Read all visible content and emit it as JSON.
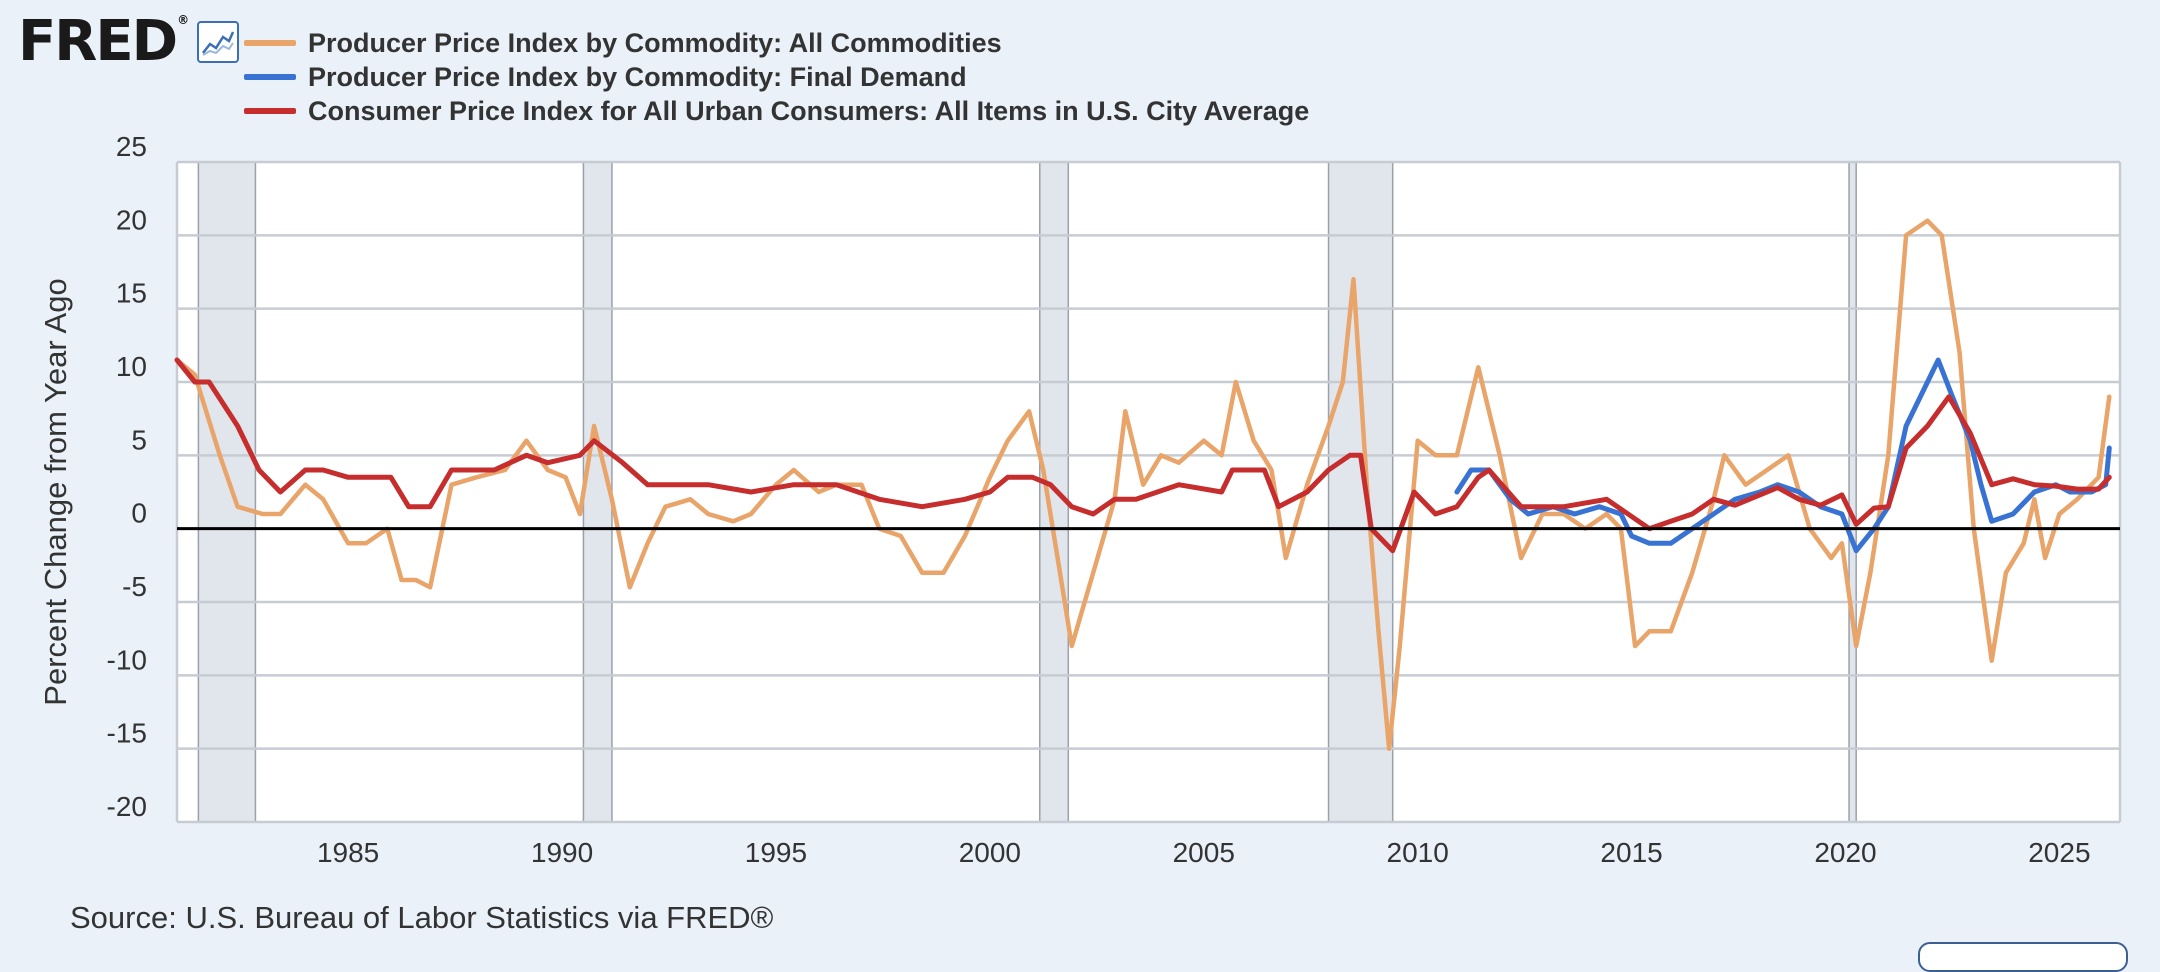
{
  "logo": {
    "text": "FRED",
    "registered": "®",
    "icon": "line-chart-icon"
  },
  "source": "Source: U.S. Bureau of Labor Statistics via FRED®",
  "chart_data": {
    "type": "line",
    "title": "",
    "xlabel": "",
    "ylabel": "Percent Change from Year Ago",
    "xlim": [
      "1981-01",
      "2026-06"
    ],
    "ylim": [
      -20,
      25
    ],
    "yticks": [
      25,
      20,
      15,
      10,
      5,
      0,
      -5,
      -10,
      -15,
      -20
    ],
    "xticks": [
      1985,
      1990,
      1995,
      2000,
      2005,
      2010,
      2015,
      2020,
      2025
    ],
    "grid": true,
    "legend_position": "top-left",
    "recessions": [
      [
        "1981-07",
        "1982-11"
      ],
      [
        "1990-07",
        "1991-03"
      ],
      [
        "2001-03",
        "2001-11"
      ],
      [
        "2007-12",
        "2009-06"
      ],
      [
        "2020-02",
        "2020-04"
      ]
    ],
    "series": [
      {
        "name": "Producer Price Index by Commodity: All Commodities",
        "color": "#e9a46a",
        "points": [
          [
            "1981-01",
            11.5
          ],
          [
            "1981-06",
            10.5
          ],
          [
            "1982-01",
            5
          ],
          [
            "1982-06",
            1.5
          ],
          [
            "1983-01",
            1
          ],
          [
            "1983-06",
            1
          ],
          [
            "1984-01",
            3
          ],
          [
            "1984-06",
            2
          ],
          [
            "1985-01",
            -1
          ],
          [
            "1985-06",
            -1
          ],
          [
            "1985-12",
            0
          ],
          [
            "1986-04",
            -3.5
          ],
          [
            "1986-08",
            -3.5
          ],
          [
            "1986-12",
            -4
          ],
          [
            "1987-06",
            3
          ],
          [
            "1988-01",
            3.5
          ],
          [
            "1988-09",
            4
          ],
          [
            "1989-03",
            6
          ],
          [
            "1989-09",
            4
          ],
          [
            "1990-02",
            3.5
          ],
          [
            "1990-06",
            1
          ],
          [
            "1990-10",
            7
          ],
          [
            "1991-03",
            2
          ],
          [
            "1991-08",
            -4
          ],
          [
            "1992-01",
            -1
          ],
          [
            "1992-06",
            1.5
          ],
          [
            "1993-01",
            2
          ],
          [
            "1993-06",
            1
          ],
          [
            "1994-01",
            0.5
          ],
          [
            "1994-06",
            1
          ],
          [
            "1995-01",
            3
          ],
          [
            "1995-06",
            4
          ],
          [
            "1996-01",
            2.5
          ],
          [
            "1996-06",
            3
          ],
          [
            "1997-01",
            3
          ],
          [
            "1997-06",
            0
          ],
          [
            "1997-12",
            -0.5
          ],
          [
            "1998-06",
            -3
          ],
          [
            "1998-12",
            -3
          ],
          [
            "1999-06",
            -0.5
          ],
          [
            "2000-01",
            3.5
          ],
          [
            "2000-06",
            6
          ],
          [
            "2000-12",
            8
          ],
          [
            "2001-04",
            4
          ],
          [
            "2001-08",
            -2
          ],
          [
            "2001-12",
            -8
          ],
          [
            "2002-06",
            -3
          ],
          [
            "2002-12",
            2
          ],
          [
            "2003-03",
            8
          ],
          [
            "2003-08",
            3
          ],
          [
            "2004-01",
            5
          ],
          [
            "2004-06",
            4.5
          ],
          [
            "2005-01",
            6
          ],
          [
            "2005-06",
            5
          ],
          [
            "2005-10",
            10
          ],
          [
            "2006-03",
            6
          ],
          [
            "2006-08",
            4
          ],
          [
            "2006-12",
            -2
          ],
          [
            "2007-06",
            3
          ],
          [
            "2007-12",
            7
          ],
          [
            "2008-04",
            10
          ],
          [
            "2008-07",
            17
          ],
          [
            "2008-11",
            2
          ],
          [
            "2009-02",
            -7
          ],
          [
            "2009-05",
            -15
          ],
          [
            "2009-08",
            -8
          ],
          [
            "2010-01",
            6
          ],
          [
            "2010-06",
            5
          ],
          [
            "2010-12",
            5
          ],
          [
            "2011-06",
            11
          ],
          [
            "2011-12",
            5
          ],
          [
            "2012-06",
            -2
          ],
          [
            "2012-12",
            1
          ],
          [
            "2013-06",
            1
          ],
          [
            "2013-12",
            0
          ],
          [
            "2014-06",
            1
          ],
          [
            "2014-10",
            0
          ],
          [
            "2015-02",
            -8
          ],
          [
            "2015-06",
            -7
          ],
          [
            "2015-12",
            -7
          ],
          [
            "2016-06",
            -3
          ],
          [
            "2016-12",
            2
          ],
          [
            "2017-03",
            5
          ],
          [
            "2017-09",
            3
          ],
          [
            "2018-03",
            4
          ],
          [
            "2018-09",
            5
          ],
          [
            "2019-03",
            0
          ],
          [
            "2019-09",
            -2
          ],
          [
            "2019-12",
            -1
          ],
          [
            "2020-04",
            -8
          ],
          [
            "2020-08",
            -3
          ],
          [
            "2021-01",
            5
          ],
          [
            "2021-06",
            20
          ],
          [
            "2021-12",
            21
          ],
          [
            "2022-04",
            20
          ],
          [
            "2022-09",
            12
          ],
          [
            "2023-01",
            0
          ],
          [
            "2023-06",
            -9
          ],
          [
            "2023-10",
            -3
          ],
          [
            "2024-03",
            -1
          ],
          [
            "2024-06",
            2
          ],
          [
            "2024-09",
            -2
          ],
          [
            "2025-01",
            1
          ],
          [
            "2025-06",
            2
          ],
          [
            "2025-12",
            3.5
          ],
          [
            "2026-03",
            9
          ]
        ]
      },
      {
        "name": "Producer Price Index by Commodity: Final Demand",
        "color": "#3873d4",
        "points": [
          [
            "2010-12",
            2.5
          ],
          [
            "2011-04",
            4
          ],
          [
            "2011-09",
            4
          ],
          [
            "2012-03",
            2
          ],
          [
            "2012-08",
            1
          ],
          [
            "2013-03",
            1.5
          ],
          [
            "2013-09",
            1
          ],
          [
            "2014-04",
            1.5
          ],
          [
            "2014-10",
            1
          ],
          [
            "2015-01",
            -0.5
          ],
          [
            "2015-06",
            -1
          ],
          [
            "2015-12",
            -1
          ],
          [
            "2016-06",
            0
          ],
          [
            "2016-12",
            1
          ],
          [
            "2017-06",
            2
          ],
          [
            "2018-01",
            2.5
          ],
          [
            "2018-06",
            3
          ],
          [
            "2018-12",
            2.5
          ],
          [
            "2019-06",
            1.5
          ],
          [
            "2019-12",
            1
          ],
          [
            "2020-04",
            -1.5
          ],
          [
            "2020-09",
            0
          ],
          [
            "2021-01",
            1.5
          ],
          [
            "2021-06",
            7
          ],
          [
            "2021-12",
            10
          ],
          [
            "2022-03",
            11.5
          ],
          [
            "2022-07",
            9
          ],
          [
            "2022-12",
            6
          ],
          [
            "2023-03",
            3
          ],
          [
            "2023-06",
            0.5
          ],
          [
            "2023-12",
            1
          ],
          [
            "2024-06",
            2.5
          ],
          [
            "2024-12",
            3
          ],
          [
            "2025-04",
            2.5
          ],
          [
            "2025-10",
            2.5
          ],
          [
            "2026-02",
            3
          ],
          [
            "2026-03",
            5.5
          ]
        ]
      },
      {
        "name": "Consumer Price Index for All Urban Consumers: All Items in U.S. City Average",
        "color": "#c62d2d",
        "points": [
          [
            "1981-01",
            11.5
          ],
          [
            "1981-06",
            10
          ],
          [
            "1981-10",
            10
          ],
          [
            "1982-06",
            7
          ],
          [
            "1982-12",
            4
          ],
          [
            "1983-06",
            2.5
          ],
          [
            "1984-01",
            4
          ],
          [
            "1984-06",
            4
          ],
          [
            "1985-01",
            3.5
          ],
          [
            "1985-06",
            3.5
          ],
          [
            "1986-01",
            3.5
          ],
          [
            "1986-06",
            1.5
          ],
          [
            "1986-12",
            1.5
          ],
          [
            "1987-06",
            4
          ],
          [
            "1988-01",
            4
          ],
          [
            "1988-06",
            4
          ],
          [
            "1989-03",
            5
          ],
          [
            "1989-09",
            4.5
          ],
          [
            "1990-06",
            5
          ],
          [
            "1990-10",
            6
          ],
          [
            "1991-06",
            4.5
          ],
          [
            "1992-01",
            3
          ],
          [
            "1992-06",
            3
          ],
          [
            "1993-06",
            3
          ],
          [
            "1994-06",
            2.5
          ],
          [
            "1995-06",
            3
          ],
          [
            "1996-06",
            3
          ],
          [
            "1997-06",
            2
          ],
          [
            "1998-06",
            1.5
          ],
          [
            "1999-06",
            2
          ],
          [
            "2000-01",
            2.5
          ],
          [
            "2000-06",
            3.5
          ],
          [
            "2001-01",
            3.5
          ],
          [
            "2001-06",
            3
          ],
          [
            "2001-12",
            1.5
          ],
          [
            "2002-06",
            1
          ],
          [
            "2002-12",
            2
          ],
          [
            "2003-06",
            2
          ],
          [
            "2004-06",
            3
          ],
          [
            "2005-06",
            2.5
          ],
          [
            "2005-09",
            4
          ],
          [
            "2006-01",
            4
          ],
          [
            "2006-06",
            4
          ],
          [
            "2006-10",
            1.5
          ],
          [
            "2007-06",
            2.5
          ],
          [
            "2007-12",
            4
          ],
          [
            "2008-06",
            5
          ],
          [
            "2008-09",
            5
          ],
          [
            "2008-12",
            0
          ],
          [
            "2009-06",
            -1.5
          ],
          [
            "2009-12",
            2.5
          ],
          [
            "2010-06",
            1
          ],
          [
            "2010-12",
            1.5
          ],
          [
            "2011-06",
            3.5
          ],
          [
            "2011-09",
            4
          ],
          [
            "2012-06",
            1.5
          ],
          [
            "2013-06",
            1.5
          ],
          [
            "2014-06",
            2
          ],
          [
            "2014-12",
            1
          ],
          [
            "2015-06",
            0
          ],
          [
            "2015-12",
            0.5
          ],
          [
            "2016-06",
            1
          ],
          [
            "2016-12",
            2
          ],
          [
            "2017-06",
            1.6
          ],
          [
            "2018-06",
            2.8
          ],
          [
            "2018-12",
            2
          ],
          [
            "2019-06",
            1.6
          ],
          [
            "2019-12",
            2.3
          ],
          [
            "2020-04",
            0.3
          ],
          [
            "2020-09",
            1.4
          ],
          [
            "2021-01",
            1.5
          ],
          [
            "2021-06",
            5.5
          ],
          [
            "2021-12",
            7
          ],
          [
            "2022-06",
            9
          ],
          [
            "2022-12",
            6.5
          ],
          [
            "2023-06",
            3
          ],
          [
            "2023-12",
            3.4
          ],
          [
            "2024-06",
            3
          ],
          [
            "2024-12",
            2.9
          ],
          [
            "2025-06",
            2.7
          ],
          [
            "2025-12",
            2.7
          ],
          [
            "2026-03",
            3.5
          ]
        ]
      }
    ]
  }
}
